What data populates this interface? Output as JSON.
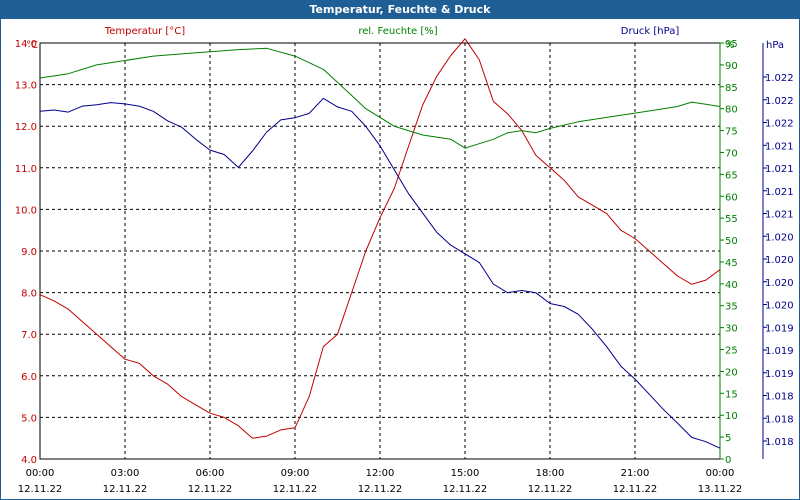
{
  "window": {
    "title": "Temperatur, Feuchte & Druck"
  },
  "colors": {
    "temp": "#c00000",
    "hum": "#008000",
    "press": "#00008b",
    "titlebar": "#1f5f96",
    "grid": "#000000"
  },
  "chart_data": {
    "type": "line",
    "title": "Temperatur, Feuchte & Druck",
    "grid": true,
    "axes": {
      "temp": {
        "label": "Temperatur [°C]",
        "unit": "°C",
        "ylim": [
          4.0,
          14.0
        ],
        "ticks": [
          "4.0",
          "5.0",
          "6.0",
          "7.0",
          "8.0",
          "9.0",
          "10.0",
          "11.0",
          "12.0",
          "13.0",
          "14.0"
        ]
      },
      "hum": {
        "label": "rel. Feuchte [%]",
        "unit": "%",
        "ylim": [
          0,
          95
        ],
        "ticks": [
          "0",
          "5",
          "10",
          "15",
          "20",
          "25",
          "30",
          "35",
          "40",
          "45",
          "50",
          "55",
          "60",
          "65",
          "70",
          "75",
          "80",
          "85",
          "90",
          "95"
        ]
      },
      "press": {
        "label": "Druck [hPa]",
        "unit": "hPa",
        "ticks": [
          "1.018",
          "1.018",
          "1.018",
          "1.019",
          "1.019",
          "1.019",
          "1.020",
          "1.020",
          "1.020",
          "1.020",
          "1.021",
          "1.021",
          "1.021",
          "1.021",
          "1.022",
          "1.022",
          "1.022"
        ]
      }
    },
    "x_ticks": [
      {
        "time": "00:00",
        "date": "12.11.22"
      },
      {
        "time": "03:00",
        "date": "12.11.22"
      },
      {
        "time": "06:00",
        "date": "12.11.22"
      },
      {
        "time": "09:00",
        "date": "12.11.22"
      },
      {
        "time": "12:00",
        "date": "12.11.22"
      },
      {
        "time": "15:00",
        "date": "12.11.22"
      },
      {
        "time": "18:00",
        "date": "12.11.22"
      },
      {
        "time": "21:00",
        "date": "12.11.22"
      },
      {
        "time": "00:00",
        "date": "13.11.22"
      }
    ],
    "x_range_hours": [
      0,
      24
    ],
    "series": [
      {
        "name": "Temperatur [°C]",
        "axis": "temp",
        "x": [
          0,
          0.5,
          1,
          1.5,
          2,
          2.5,
          3,
          3.5,
          4,
          4.5,
          5,
          5.5,
          6,
          6.5,
          7,
          7.5,
          8,
          8.5,
          9,
          9.5,
          10,
          10.5,
          11,
          11.5,
          12,
          12.5,
          13,
          13.5,
          14,
          14.5,
          15,
          15.5,
          16,
          16.5,
          17,
          17.5,
          18,
          18.5,
          19,
          19.5,
          20,
          20.5,
          21,
          21.5,
          22,
          22.5,
          23,
          23.5,
          24
        ],
        "values": [
          7.95,
          7.8,
          7.6,
          7.3,
          7.0,
          6.7,
          6.4,
          6.3,
          6.0,
          5.8,
          5.5,
          5.3,
          5.1,
          5.0,
          4.8,
          4.5,
          4.55,
          4.7,
          4.75,
          5.5,
          6.7,
          7.0,
          8.0,
          9.0,
          9.8,
          10.5,
          11.5,
          12.5,
          13.2,
          13.7,
          14.1,
          13.6,
          12.6,
          12.3,
          11.9,
          11.3,
          11.0,
          10.7,
          10.3,
          10.1,
          9.9,
          9.5,
          9.3,
          9.0,
          8.7,
          8.4,
          8.2,
          8.3,
          8.55
        ]
      },
      {
        "name": "rel. Feuchte [%]",
        "axis": "hum",
        "x": [
          0,
          1,
          2,
          3,
          4,
          5,
          6,
          7,
          8,
          9,
          10,
          10.5,
          11,
          11.5,
          12,
          12.5,
          13,
          13.5,
          14,
          14.5,
          15,
          15.5,
          16,
          16.5,
          17,
          17.5,
          18,
          19,
          20,
          21,
          22,
          22.5,
          23,
          23.5,
          24
        ],
        "values": [
          87,
          88,
          90,
          91,
          92,
          92.5,
          93,
          93.5,
          93.8,
          92,
          89,
          86,
          83,
          80,
          78,
          76,
          75,
          74,
          73.5,
          73,
          71,
          72,
          73,
          74.5,
          75,
          74.5,
          75.5,
          77,
          78,
          79,
          80,
          80.5,
          81.5,
          81,
          80.5
        ]
      },
      {
        "name": "Druck [hPa]",
        "axis": "press",
        "x": [
          0,
          0.5,
          1,
          1.5,
          2,
          2.5,
          3,
          3.5,
          4,
          4.5,
          5,
          5.5,
          6,
          6.5,
          7,
          7.5,
          8,
          8.5,
          9,
          9.5,
          10,
          10.5,
          11,
          11.5,
          12,
          12.5,
          13,
          13.5,
          14,
          14.5,
          15,
          15.5,
          16,
          16.5,
          17,
          17.5,
          18,
          18.5,
          19,
          19.5,
          20,
          20.5,
          21,
          21.5,
          22,
          22.5,
          23,
          23.5,
          24
        ],
        "values": [
          1.0221,
          1.02213,
          1.02208,
          1.02222,
          1.02225,
          1.0223,
          1.02227,
          1.02222,
          1.0221,
          1.02188,
          1.02173,
          1.02145,
          1.0212,
          1.0211,
          1.0208,
          1.02118,
          1.02162,
          1.0219,
          1.02195,
          1.02205,
          1.0224,
          1.0222,
          1.0221,
          1.02175,
          1.0213,
          1.02075,
          1.0202,
          1.01975,
          1.0193,
          1.019,
          1.0188,
          1.0186,
          1.0181,
          1.0179,
          1.01795,
          1.0179,
          1.01765,
          1.01758,
          1.0174,
          1.01705,
          1.01665,
          1.0162,
          1.0159,
          1.01555,
          1.0152,
          1.01488,
          1.01455,
          1.01445,
          1.0143
        ]
      }
    ]
  }
}
